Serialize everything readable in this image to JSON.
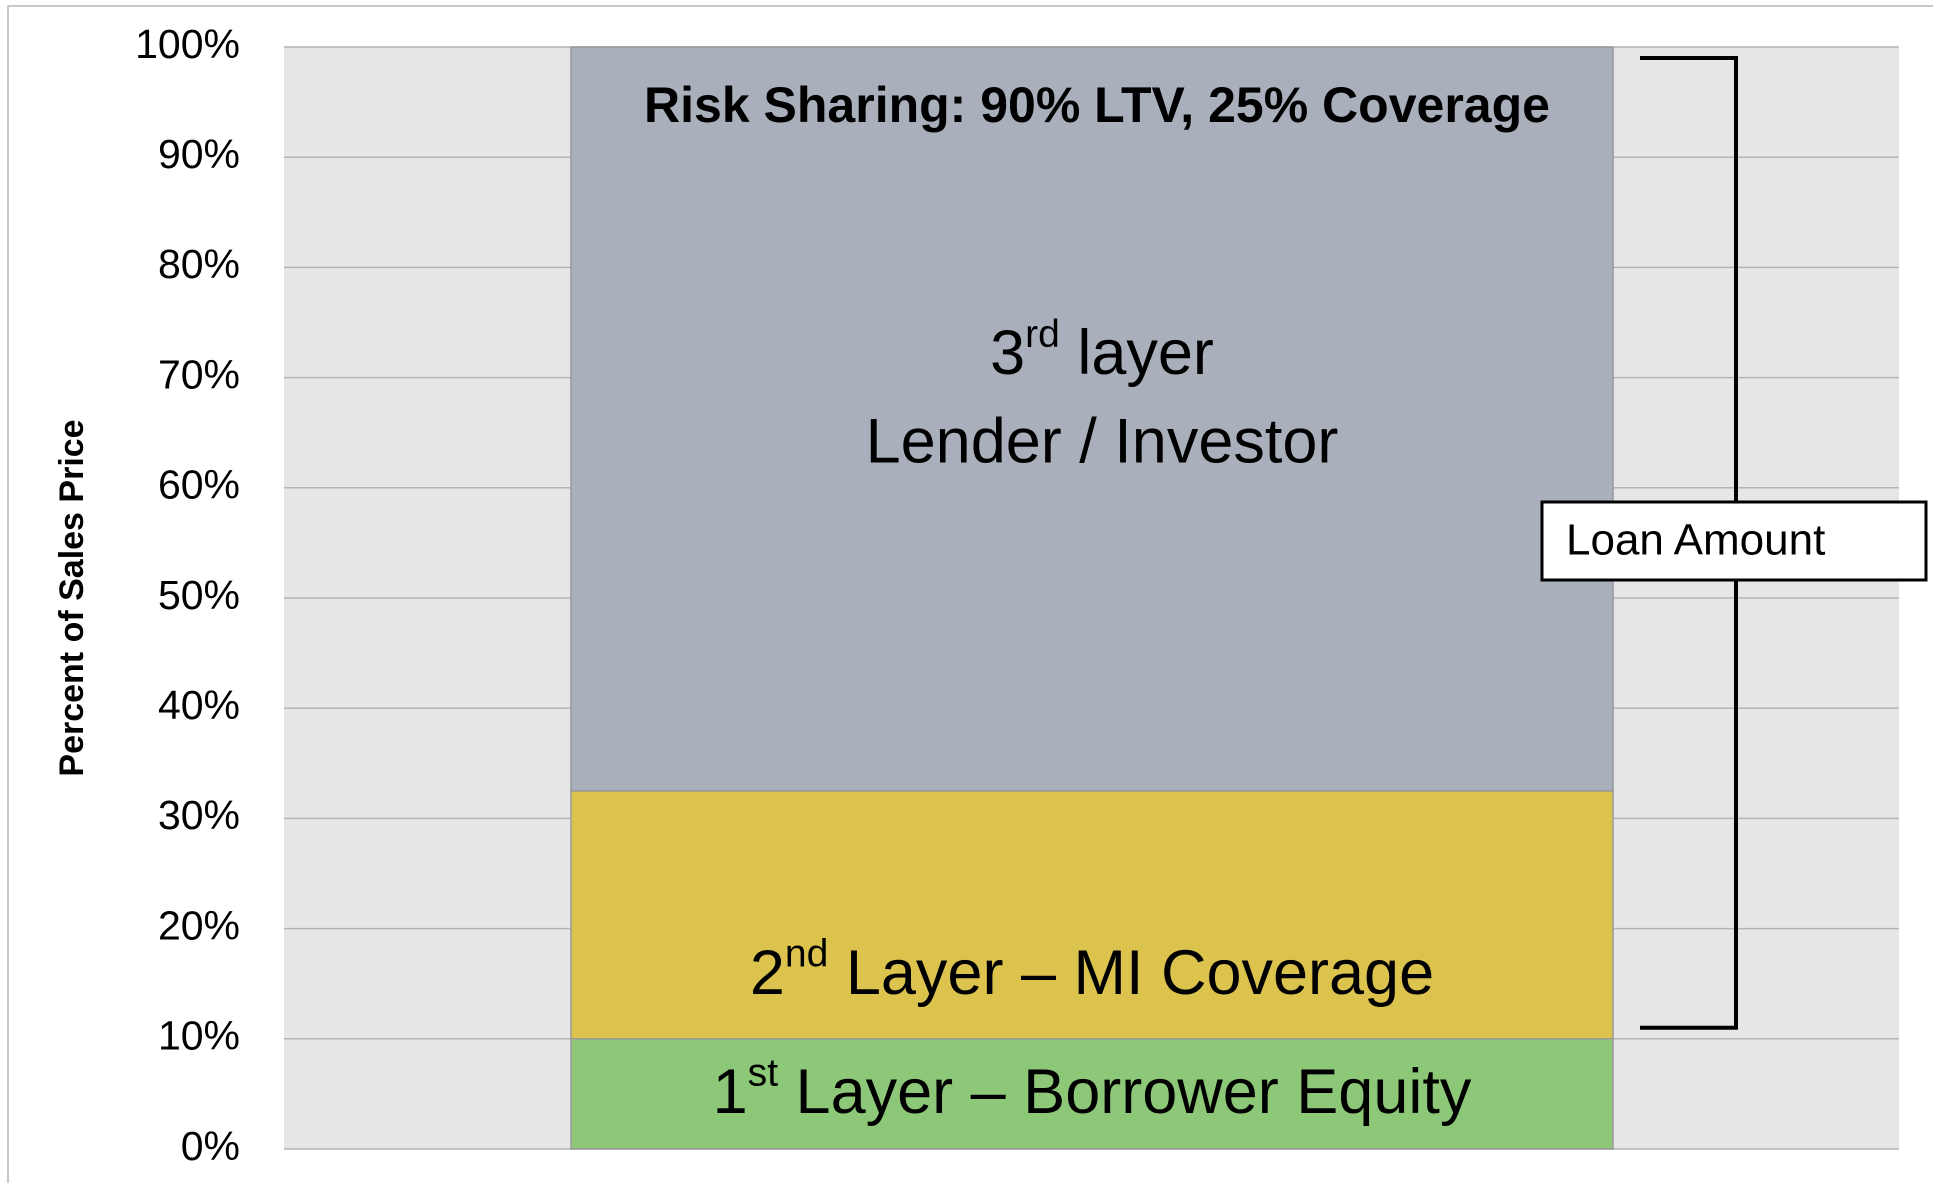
{
  "chart_data": {
    "type": "stacked_bar",
    "title": "Risk Sharing: 90% LTV, 25% Coverage",
    "y_label": "Percent of Sales Price",
    "categories": [
      null
    ],
    "series": [
      {
        "name": "1st Layer – Borrower Equity",
        "color": "#8dc878",
        "values": [
          10
        ]
      },
      {
        "name": "2nd Layer – MI Coverage",
        "color": "#dcc34e",
        "values": [
          22.5
        ]
      },
      {
        "name": "3rd layer",
        "note": "Lender / Investor",
        "color": "#a9afbb",
        "values": [
          67.5
        ]
      }
    ],
    "ylim": [
      0,
      100
    ],
    "yticks": [
      {
        "value": 0,
        "label": "0%"
      },
      {
        "value": 10,
        "label": "10%"
      },
      {
        "value": 20,
        "label": "20%"
      },
      {
        "value": 30,
        "label": "30%"
      },
      {
        "value": 40,
        "label": "40%"
      },
      {
        "value": 50,
        "label": "50%"
      },
      {
        "value": 60,
        "label": "60%"
      },
      {
        "value": 70,
        "label": "70%"
      },
      {
        "value": 80,
        "label": "80%"
      },
      {
        "value": 90,
        "label": "90%"
      },
      {
        "value": 100,
        "label": "100%"
      }
    ],
    "grid": true,
    "bracket": {
      "label": "Loan Amount",
      "range": [
        11,
        99
      ]
    }
  }
}
